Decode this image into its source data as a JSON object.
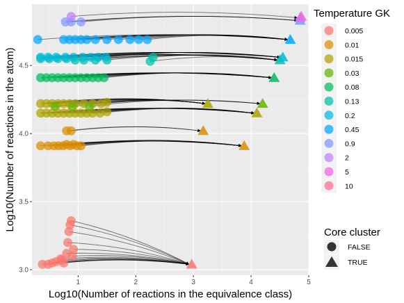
{
  "chart_data": {
    "type": "scatter",
    "xlabel": "Log10(Number of reactions in the equivalence class)",
    "ylabel": "Log10(Number of reactions  in the atom)",
    "xlim": [
      0.2,
      5.0
    ],
    "ylim": [
      2.96,
      4.95
    ],
    "x_ticks": [
      1,
      2,
      3,
      4,
      5
    ],
    "y_ticks": [
      3.0,
      3.5,
      4.0,
      4.5
    ],
    "x_tick_labels": [
      "1",
      "2",
      "3",
      "4",
      "5"
    ],
    "y_tick_labels": [
      "3.0",
      "3.5",
      "4.0",
      "4.5"
    ],
    "grid": true,
    "color_legend": {
      "title": "Temperature GK",
      "entries": [
        {
          "label": "0.005",
          "color": "#F8766D"
        },
        {
          "label": "0.01",
          "color": "#DB8E00"
        },
        {
          "label": "0.015",
          "color": "#AEA200"
        },
        {
          "label": "0.03",
          "color": "#64B200"
        },
        {
          "label": "0.08",
          "color": "#00BD5C"
        },
        {
          "label": "0.13",
          "color": "#00C1A7"
        },
        {
          "label": "0.2",
          "color": "#00BADE"
        },
        {
          "label": "0.45",
          "color": "#00A6FF"
        },
        {
          "label": "0.9",
          "color": "#7F96FF"
        },
        {
          "label": "2",
          "color": "#BC81FF"
        },
        {
          "label": "5",
          "color": "#F263E2"
        },
        {
          "label": "10",
          "color": "#FF6C91"
        }
      ]
    },
    "shape_legend": {
      "title": "Core cluster",
      "entries": [
        {
          "label": "FALSE",
          "shape": "circle"
        },
        {
          "label": "TRUE",
          "shape": "triangle"
        }
      ]
    },
    "groups": [
      {
        "temperature": "0.005",
        "y": 3.04,
        "core_x": 2.97,
        "core_y": 3.04,
        "points": [
          [
            0.38,
            3.04
          ],
          [
            0.48,
            3.04
          ],
          [
            0.55,
            3.05
          ],
          [
            0.62,
            3.06
          ],
          [
            0.7,
            3.08
          ],
          [
            0.75,
            3.05
          ],
          [
            0.8,
            3.12
          ],
          [
            0.82,
            3.2
          ],
          [
            0.84,
            3.28
          ],
          [
            0.86,
            3.33
          ],
          [
            0.88,
            3.36
          ],
          [
            0.9,
            3.1
          ],
          [
            0.92,
            3.15
          ],
          [
            0.72,
            3.07
          ]
        ]
      },
      {
        "temperature": "0.01",
        "y": 3.91,
        "core_x": 3.88,
        "core_y": 3.91,
        "points": [
          [
            0.35,
            3.91
          ],
          [
            0.48,
            3.91
          ],
          [
            0.58,
            3.91
          ],
          [
            0.66,
            3.91
          ],
          [
            0.74,
            3.91
          ],
          [
            0.8,
            3.92
          ],
          [
            0.86,
            3.91
          ],
          [
            0.92,
            3.92
          ],
          [
            0.98,
            3.91
          ],
          [
            1.05,
            3.91
          ]
        ]
      },
      {
        "temperature": "0.01",
        "y": 4.02,
        "core_x": 3.17,
        "core_y": 4.02,
        "points": [
          [
            0.8,
            4.02
          ],
          [
            0.88,
            4.02
          ]
        ]
      },
      {
        "temperature": "0.015",
        "y": 4.15,
        "core_x": 4.1,
        "core_y": 4.15,
        "points": [
          [
            0.35,
            4.15
          ],
          [
            0.45,
            4.15
          ],
          [
            0.55,
            4.15
          ],
          [
            0.65,
            4.15
          ],
          [
            0.75,
            4.15
          ],
          [
            0.85,
            4.15
          ],
          [
            0.95,
            4.15
          ],
          [
            1.05,
            4.15
          ],
          [
            1.15,
            4.15
          ],
          [
            1.25,
            4.15
          ],
          [
            1.38,
            4.15
          ],
          [
            1.5,
            4.16
          ]
        ]
      },
      {
        "temperature": "0.015",
        "y": 4.22,
        "core_x": 3.25,
        "core_y": 4.22,
        "points": [
          [
            0.35,
            4.22
          ],
          [
            0.45,
            4.22
          ],
          [
            0.55,
            4.22
          ],
          [
            0.65,
            4.22
          ],
          [
            0.75,
            4.22
          ],
          [
            0.85,
            4.22
          ],
          [
            0.95,
            4.22
          ],
          [
            1.1,
            4.22
          ],
          [
            1.25,
            4.22
          ],
          [
            1.4,
            4.22
          ],
          [
            1.5,
            4.23
          ]
        ]
      },
      {
        "temperature": "0.03",
        "y": 4.22,
        "core_x": 4.2,
        "core_y": 4.22,
        "points": [
          [
            0.6,
            4.2
          ],
          [
            0.9,
            4.2
          ],
          [
            1.2,
            4.2
          ]
        ]
      },
      {
        "temperature": "0.08",
        "y": 4.41,
        "core_x": 4.4,
        "core_y": 4.41,
        "points": [
          [
            0.35,
            4.41
          ],
          [
            0.45,
            4.41
          ],
          [
            0.55,
            4.41
          ],
          [
            0.65,
            4.41
          ],
          [
            0.75,
            4.41
          ],
          [
            0.85,
            4.41
          ],
          [
            0.95,
            4.41
          ],
          [
            1.05,
            4.41
          ],
          [
            1.15,
            4.41
          ],
          [
            1.25,
            4.41
          ],
          [
            1.35,
            4.41
          ],
          [
            1.45,
            4.41
          ]
        ]
      },
      {
        "temperature": "0.13",
        "y": 4.54,
        "core_x": 4.5,
        "core_y": 4.54,
        "points": [
          [
            0.35,
            4.55
          ],
          [
            0.5,
            4.55
          ],
          [
            0.65,
            4.55
          ],
          [
            0.8,
            4.55
          ],
          [
            0.95,
            4.54
          ],
          [
            1.1,
            4.54
          ],
          [
            1.3,
            4.54
          ],
          [
            1.5,
            4.54
          ],
          [
            2.25,
            4.53
          ],
          [
            2.3,
            4.56
          ]
        ]
      },
      {
        "temperature": "0.2",
        "y": 4.56,
        "core_x": 4.55,
        "core_y": 4.56,
        "points": [
          [
            0.35,
            4.56
          ],
          [
            0.48,
            4.56
          ],
          [
            0.62,
            4.56
          ],
          [
            0.78,
            4.56
          ],
          [
            0.92,
            4.56
          ],
          [
            1.08,
            4.56
          ],
          [
            1.22,
            4.56
          ],
          [
            1.35,
            4.56
          ],
          [
            1.48,
            4.56
          ]
        ]
      },
      {
        "temperature": "0.45",
        "y": 4.69,
        "core_x": 4.68,
        "core_y": 4.69,
        "points": [
          [
            0.3,
            4.69
          ],
          [
            0.75,
            4.69
          ],
          [
            0.85,
            4.69
          ],
          [
            0.95,
            4.69
          ],
          [
            1.05,
            4.69
          ],
          [
            1.15,
            4.69
          ],
          [
            1.3,
            4.69
          ],
          [
            1.5,
            4.69
          ],
          [
            1.7,
            4.69
          ],
          [
            1.9,
            4.69
          ],
          [
            2.05,
            4.69
          ],
          [
            2.2,
            4.69
          ]
        ]
      },
      {
        "temperature": "0.9",
        "y": 4.82,
        "core_x": 4.85,
        "core_y": 4.83,
        "points": [
          [
            0.78,
            4.82
          ],
          [
            0.88,
            4.82
          ],
          [
            1.05,
            4.82
          ]
        ]
      },
      {
        "temperature": "2",
        "y": 4.85,
        "core_x": 4.85,
        "core_y": 4.85,
        "points": [
          [
            0.88,
            4.86
          ]
        ]
      },
      {
        "temperature": "5",
        "y": 4.86,
        "core_x": 4.87,
        "core_y": 4.86,
        "points": []
      }
    ]
  }
}
